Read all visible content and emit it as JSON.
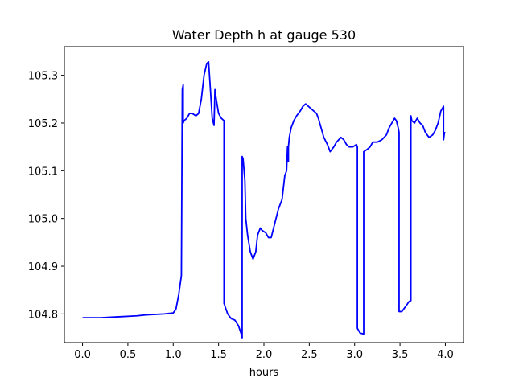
{
  "chart_data": {
    "type": "line",
    "title": "Water Depth h at gauge 530",
    "xlabel": "hours",
    "ylabel": "",
    "xlim": [
      -0.2,
      4.2
    ],
    "ylim": [
      104.74,
      105.36
    ],
    "x_ticks": [
      0.0,
      0.5,
      1.0,
      1.5,
      2.0,
      2.5,
      3.0,
      3.5,
      4.0
    ],
    "x_tick_labels": [
      "0.0",
      "0.5",
      "1.0",
      "1.5",
      "2.0",
      "2.5",
      "3.0",
      "3.5",
      "4.0"
    ],
    "y_ticks": [
      104.8,
      104.9,
      105.0,
      105.1,
      105.2,
      105.3
    ],
    "y_tick_labels": [
      "104.8",
      "104.9",
      "105.0",
      "105.1",
      "105.2",
      "105.3"
    ],
    "grid": false,
    "legend": "none",
    "series": [
      {
        "color": "#0000ff",
        "x": [
          0.0,
          0.2,
          0.4,
          0.6,
          0.7,
          0.9,
          1.0,
          1.03,
          1.06,
          1.09,
          1.1,
          1.11,
          1.11,
          1.12,
          1.12,
          1.15,
          1.18,
          1.21,
          1.25,
          1.28,
          1.31,
          1.34,
          1.37,
          1.39,
          1.41,
          1.42,
          1.43,
          1.45,
          1.46,
          1.47,
          1.5,
          1.53,
          1.56,
          1.56,
          1.6,
          1.64,
          1.68,
          1.72,
          1.75,
          1.76,
          1.76,
          1.77,
          1.79,
          1.8,
          1.82,
          1.85,
          1.88,
          1.91,
          1.93,
          1.96,
          1.98,
          2.02,
          2.05,
          2.08,
          2.12,
          2.16,
          2.2,
          2.23,
          2.25,
          2.26,
          2.27,
          2.27,
          2.28,
          2.3,
          2.33,
          2.36,
          2.4,
          2.43,
          2.46,
          2.49,
          2.52,
          2.55,
          2.58,
          2.6,
          2.63,
          2.66,
          2.7,
          2.73,
          2.75,
          2.77,
          2.8,
          2.85,
          2.88,
          2.91,
          2.94,
          2.98,
          3.02,
          3.03,
          3.03,
          3.06,
          3.1,
          3.1,
          3.14,
          3.17,
          3.2,
          3.25,
          3.3,
          3.35,
          3.38,
          3.41,
          3.44,
          3.46,
          3.48,
          3.49,
          3.49,
          3.52,
          3.56,
          3.6,
          3.62,
          3.62,
          3.63,
          3.66,
          3.69,
          3.72,
          3.75,
          3.78,
          3.82,
          3.86,
          3.89,
          3.92,
          3.95,
          3.98,
          3.98,
          3.99,
          4.0
        ],
        "y": [
          104.792,
          104.792,
          104.794,
          104.796,
          104.798,
          104.8,
          104.802,
          104.81,
          104.84,
          104.88,
          105.27,
          105.28,
          105.2,
          105.205,
          105.205,
          105.21,
          105.22,
          105.22,
          105.215,
          105.22,
          105.25,
          105.3,
          105.325,
          105.328,
          105.27,
          105.24,
          105.21,
          105.195,
          105.27,
          105.255,
          105.22,
          105.21,
          105.205,
          104.822,
          104.8,
          104.79,
          104.787,
          104.775,
          104.758,
          104.75,
          105.13,
          105.125,
          105.08,
          105.0,
          104.965,
          104.93,
          104.915,
          104.93,
          104.965,
          104.98,
          104.975,
          104.97,
          104.96,
          104.96,
          104.99,
          105.02,
          105.04,
          105.09,
          105.1,
          105.15,
          105.12,
          105.15,
          105.17,
          105.19,
          105.205,
          105.215,
          105.225,
          105.235,
          105.24,
          105.235,
          105.23,
          105.225,
          105.22,
          105.21,
          105.19,
          105.17,
          105.155,
          105.14,
          105.145,
          105.15,
          105.16,
          105.17,
          105.165,
          105.155,
          105.15,
          105.15,
          105.155,
          105.15,
          104.77,
          104.76,
          104.758,
          105.14,
          105.145,
          105.15,
          105.16,
          105.16,
          105.165,
          105.175,
          105.19,
          105.2,
          105.21,
          105.205,
          105.19,
          105.18,
          104.805,
          104.805,
          104.815,
          104.826,
          104.828,
          105.215,
          105.205,
          105.2,
          105.21,
          105.2,
          105.195,
          105.18,
          105.17,
          105.175,
          105.185,
          105.2,
          105.225,
          105.235,
          105.165,
          105.18,
          105.18
        ]
      }
    ]
  }
}
